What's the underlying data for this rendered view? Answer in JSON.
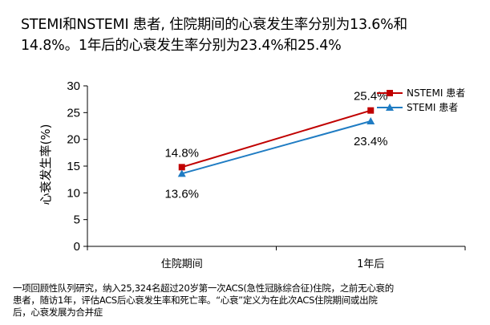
{
  "headline": {
    "line1": "STEMI和NSTEMI 患者, 住院期间的心衰发生率分别为13.6%和",
    "line2": "14.8%。1年后的心衰发生率分别为23.4%和25.4%"
  },
  "footnote": {
    "line1": "一项回顾性队列研究，纳入25,324名超过20岁第一次ACS(急性冠脉综合征)住院，之前无心衰的",
    "line2": "患者，随访1年，评估ACS后心衰发生率和死亡率。“心衰”定义为在此次ACS住院期间或出院",
    "line3": "后，心衰发展为合并症"
  },
  "chart_data": {
    "type": "line",
    "title": "",
    "xlabel": "",
    "ylabel": "心衰发生率(%)",
    "categories": [
      "住院期间",
      "1年后"
    ],
    "ylim": [
      0,
      30
    ],
    "yticks": [
      0,
      5,
      10,
      15,
      20,
      25,
      30
    ],
    "grid": false,
    "legend_position": "top-right",
    "series": [
      {
        "name": "NSTEMI 患者",
        "values": [
          14.8,
          25.4
        ],
        "labels": [
          "14.8%",
          "25.4%"
        ],
        "label_side": "above",
        "color": "#c00000",
        "marker": "square"
      },
      {
        "name": "STEMI 患者",
        "values": [
          13.6,
          23.4
        ],
        "labels": [
          "13.6%",
          "23.4%"
        ],
        "label_side": "below",
        "color": "#1f7cc3",
        "marker": "triangle"
      }
    ]
  }
}
